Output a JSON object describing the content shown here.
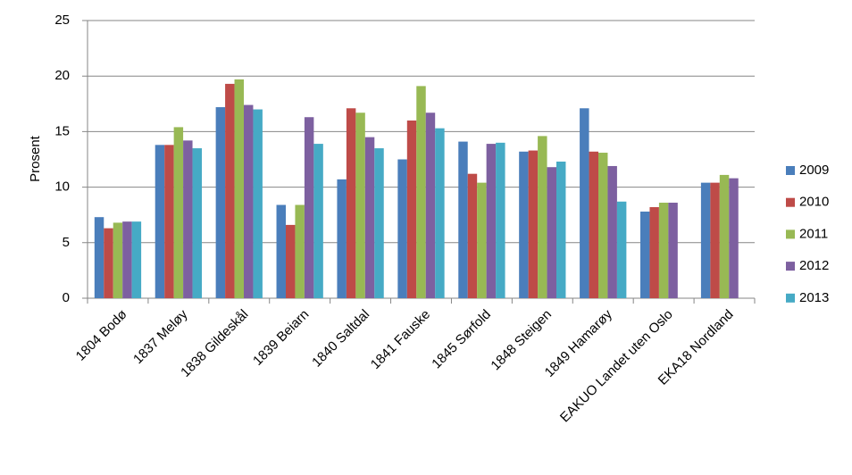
{
  "chart_data": {
    "type": "bar",
    "y_label": "Prosent",
    "categories": [
      "1804 Bodø",
      "1837 Meløy",
      "1838 Gildeskål",
      "1839 Beiarn",
      "1840 Saltdal",
      "1841 Fauske",
      "1845 Sørfold",
      "1848 Steigen",
      "1849 Hamarøy",
      "EAKUO Landet uten Oslo",
      "EKA18 Nordland"
    ],
    "series": [
      {
        "name": "2009",
        "color": "#4a7ebb",
        "values": [
          7.3,
          13.8,
          17.2,
          8.4,
          10.7,
          12.5,
          14.1,
          13.2,
          17.1,
          7.8,
          10.4
        ]
      },
      {
        "name": "2010",
        "color": "#be4b48",
        "values": [
          6.3,
          13.8,
          19.3,
          6.6,
          17.1,
          16.0,
          11.2,
          13.3,
          13.2,
          8.2,
          10.4
        ]
      },
      {
        "name": "2011",
        "color": "#98b954",
        "values": [
          6.8,
          15.4,
          19.7,
          8.4,
          16.7,
          19.1,
          10.4,
          14.6,
          13.1,
          8.6,
          11.1
        ]
      },
      {
        "name": "2012",
        "color": "#7d60a0",
        "values": [
          6.9,
          14.2,
          17.4,
          16.3,
          14.5,
          16.7,
          13.9,
          11.8,
          11.9,
          8.6,
          10.8
        ]
      },
      {
        "name": "2013",
        "color": "#46aac5",
        "values": [
          6.9,
          13.5,
          17.0,
          13.9,
          13.5,
          15.3,
          14.0,
          12.3,
          8.7,
          null,
          null
        ]
      }
    ],
    "ylim": [
      0,
      25
    ],
    "yticks": [
      0,
      5,
      10,
      15,
      20,
      25
    ],
    "grid": true,
    "legend": "right"
  }
}
